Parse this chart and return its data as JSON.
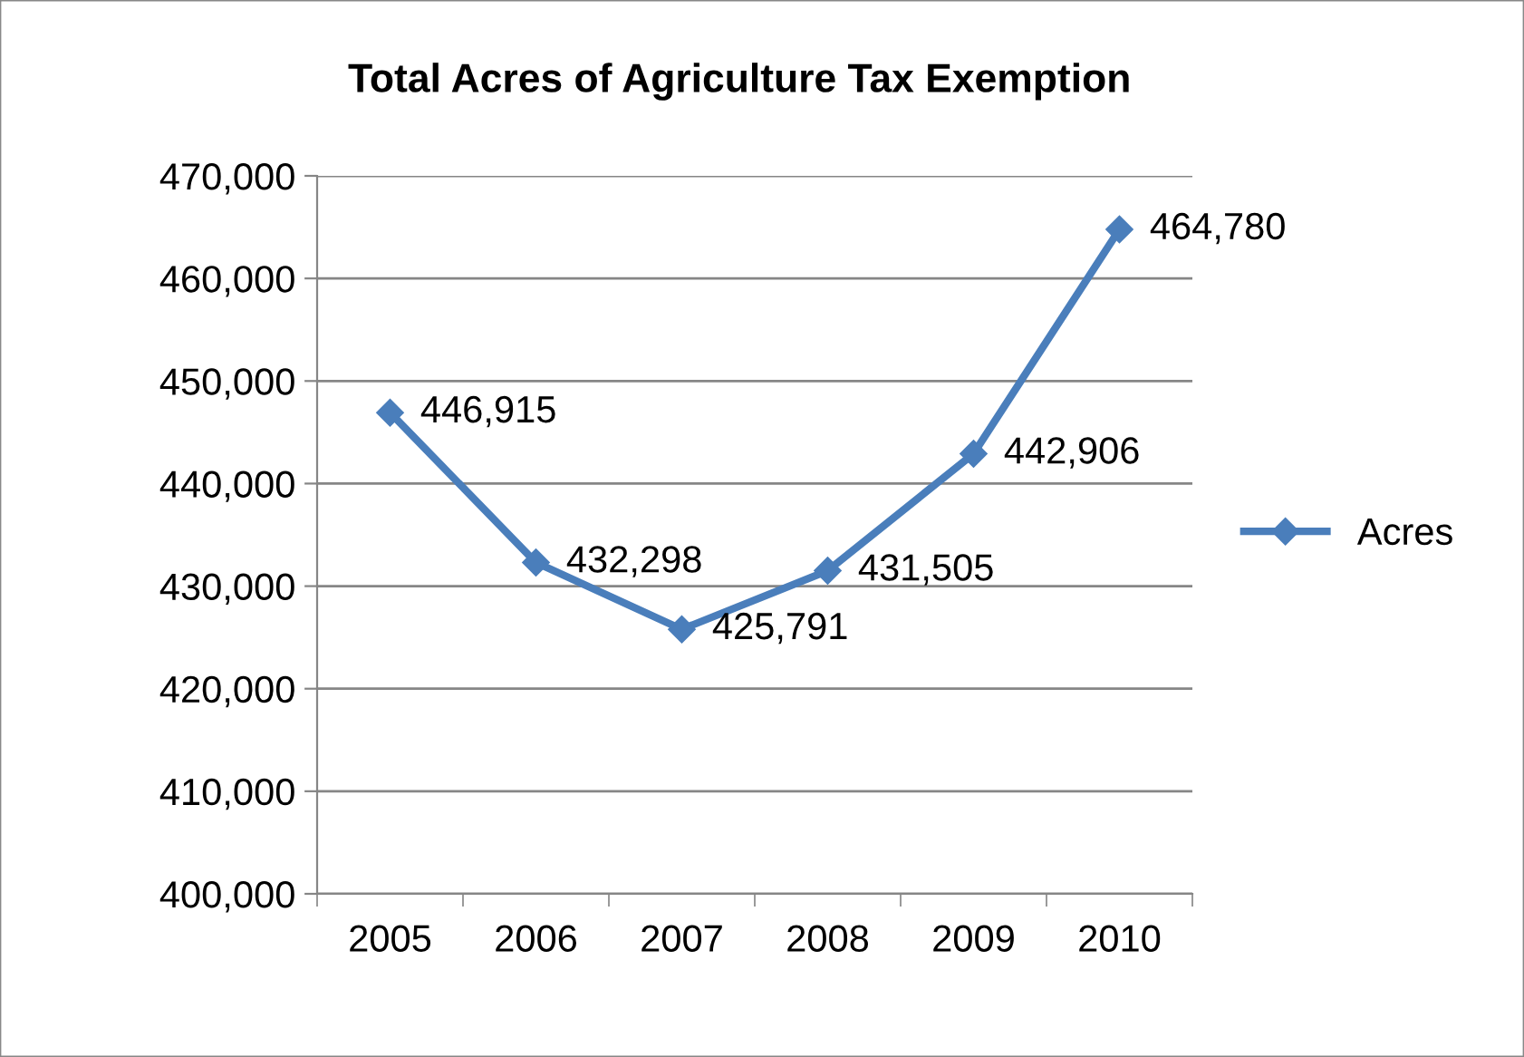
{
  "chart_data": {
    "type": "line",
    "title": "Total Acres of Agriculture Tax Exemption",
    "categories": [
      "2005",
      "2006",
      "2007",
      "2008",
      "2009",
      "2010"
    ],
    "series": [
      {
        "name": "Acres",
        "color": "#4a7ebb",
        "values": [
          446915,
          432298,
          425791,
          431505,
          442906,
          464780
        ],
        "value_labels": [
          "446,915",
          "432,298",
          "425,791",
          "431,505",
          "442,906",
          "464,780"
        ]
      }
    ],
    "ylim": [
      400000,
      470000
    ],
    "yticks": [
      {
        "value": 400000,
        "label": "400,000"
      },
      {
        "value": 410000,
        "label": "410,000"
      },
      {
        "value": 420000,
        "label": "420,000"
      },
      {
        "value": 430000,
        "label": "430,000"
      },
      {
        "value": 440000,
        "label": "440,000"
      },
      {
        "value": 450000,
        "label": "450,000"
      },
      {
        "value": 460000,
        "label": "460,000"
      },
      {
        "value": 470000,
        "label": "470,000"
      }
    ],
    "grid": "y",
    "legend": "right",
    "marker": "diamond",
    "line_style": "solid"
  }
}
